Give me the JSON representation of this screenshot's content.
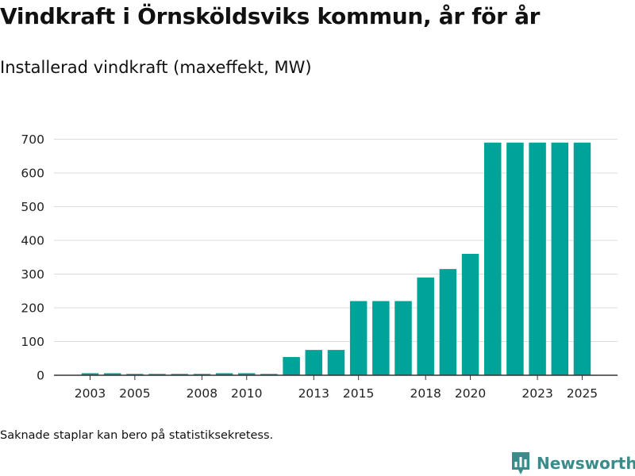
{
  "header": {
    "title": "Vindkraft i Örnsköldsviks kommun, år för år",
    "subtitle": "Installerad vindkraft (maxeffekt, MW)"
  },
  "footer": {
    "note": "Saknade staplar kan bero på statistiksekretess.",
    "brand": "Newsworthy"
  },
  "icons": {
    "brand_logo": "bar-chart-icon"
  },
  "colors": {
    "bar": "#00a398",
    "grid": "#dddddd",
    "axis": "#333333",
    "brand": "#3a8c8a"
  },
  "chart_data": {
    "type": "bar",
    "title": "Installerad vindkraft (maxeffekt, MW)",
    "xlabel": "",
    "ylabel": "",
    "categories": [
      2003,
      2004,
      2005,
      2006,
      2007,
      2008,
      2009,
      2010,
      2011,
      2012,
      2013,
      2014,
      2015,
      2016,
      2017,
      2018,
      2019,
      2020,
      2021,
      2022,
      2023,
      2024,
      2025
    ],
    "values": [
      6,
      6,
      4,
      4,
      4,
      4,
      6,
      6,
      4,
      54,
      75,
      75,
      220,
      220,
      220,
      290,
      315,
      360,
      690,
      690,
      690,
      690,
      690
    ],
    "x_tick_labels": [
      "2003",
      "2005",
      "2008",
      "2010",
      "2013",
      "2015",
      "2018",
      "2020",
      "2023",
      "2025"
    ],
    "y_ticks": [
      0,
      100,
      200,
      300,
      400,
      500,
      600,
      700
    ],
    "ylim": [
      0,
      760
    ],
    "grid": true,
    "legend": false
  }
}
